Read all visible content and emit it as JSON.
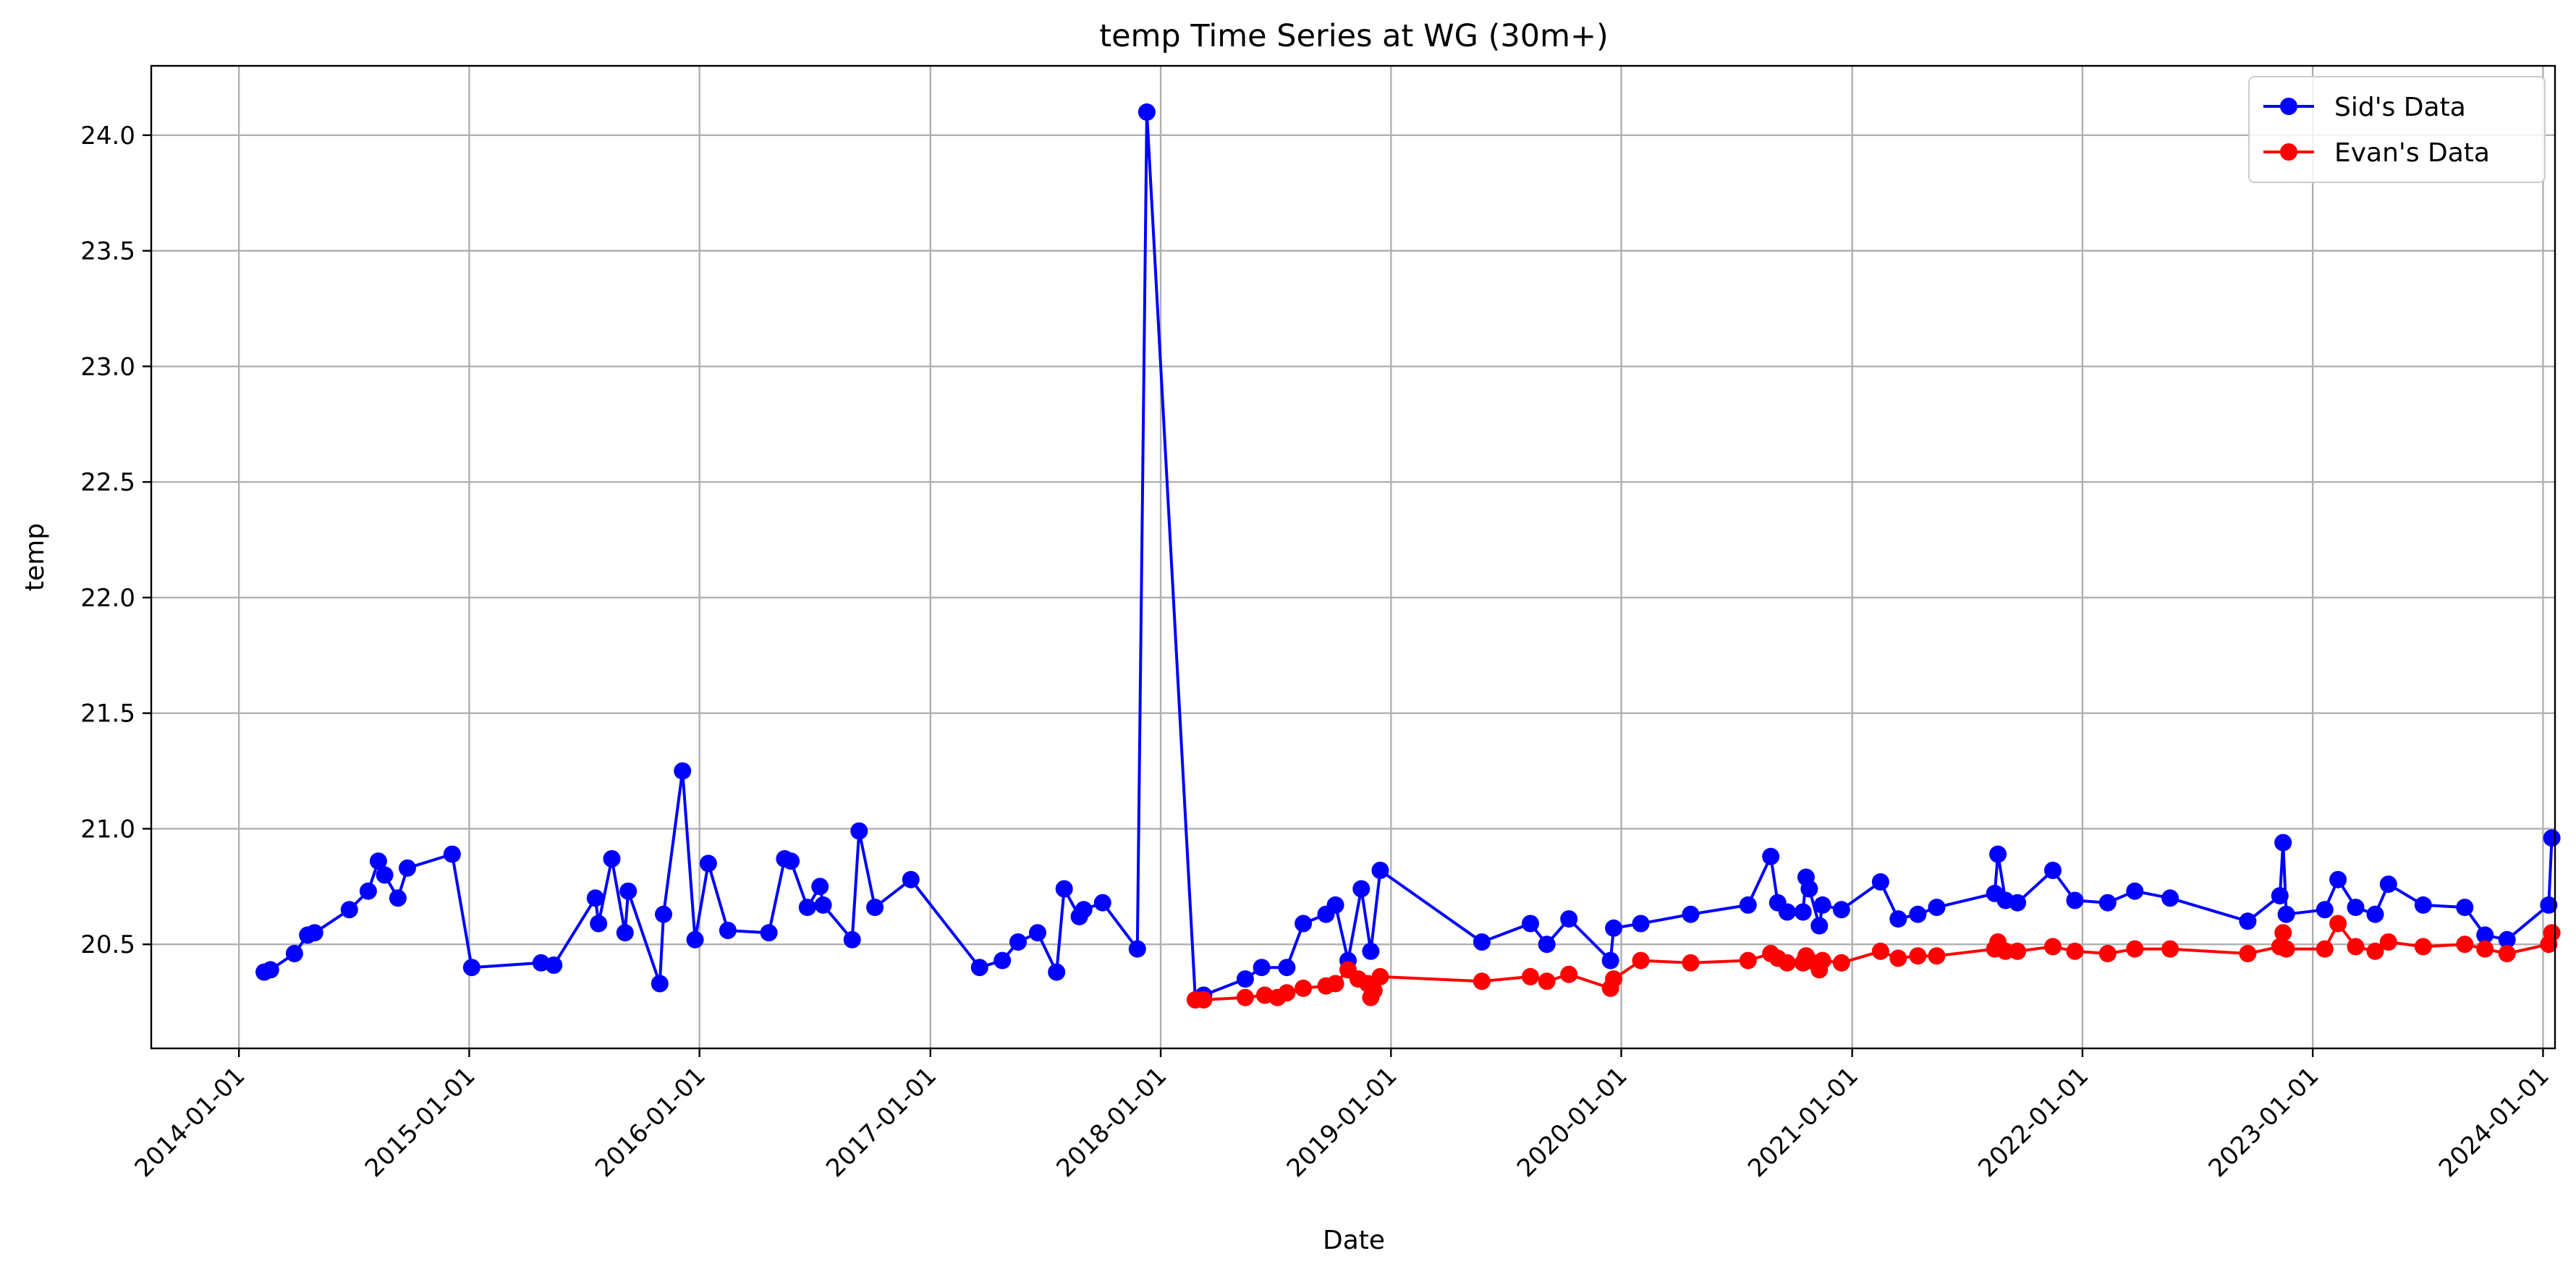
{
  "chart_data": {
    "type": "line",
    "title": "temp Time Series at WG (30m+)",
    "xlabel": "Date",
    "ylabel": "temp",
    "x_type": "date",
    "xlim": [
      "2013-08-15",
      "2024-01-20"
    ],
    "ylim": [
      20.05,
      24.3
    ],
    "x_ticks": [
      "2014-01-01",
      "2015-01-01",
      "2016-01-01",
      "2017-01-01",
      "2018-01-01",
      "2019-01-01",
      "2020-01-01",
      "2021-01-01",
      "2022-01-01",
      "2023-01-01",
      "2024-01-01"
    ],
    "y_ticks": [
      20.5,
      21.0,
      21.5,
      22.0,
      22.5,
      23.0,
      23.5,
      24.0
    ],
    "y_tick_labels": [
      "20.5",
      "21.0",
      "21.5",
      "22.0",
      "22.5",
      "23.0",
      "23.5",
      "24.0"
    ],
    "grid": true,
    "legend_position": "top-right",
    "series": [
      {
        "name": "Sid's Data",
        "color": "#0000ff",
        "marker": "circle",
        "points": [
          [
            "2014-02-10",
            20.38
          ],
          [
            "2014-02-20",
            20.39
          ],
          [
            "2014-03-30",
            20.46
          ],
          [
            "2014-04-20",
            20.54
          ],
          [
            "2014-05-01",
            20.55
          ],
          [
            "2014-06-25",
            20.65
          ],
          [
            "2014-07-25",
            20.73
          ],
          [
            "2014-08-10",
            20.86
          ],
          [
            "2014-08-20",
            20.8
          ],
          [
            "2014-09-10",
            20.7
          ],
          [
            "2014-09-25",
            20.83
          ],
          [
            "2014-12-05",
            20.89
          ],
          [
            "2015-01-05",
            20.4
          ],
          [
            "2015-04-25",
            20.42
          ],
          [
            "2015-05-15",
            20.41
          ],
          [
            "2015-07-20",
            20.7
          ],
          [
            "2015-07-25",
            20.59
          ],
          [
            "2015-08-15",
            20.87
          ],
          [
            "2015-09-05",
            20.55
          ],
          [
            "2015-09-10",
            20.73
          ],
          [
            "2015-10-30",
            20.33
          ],
          [
            "2015-11-05",
            20.63
          ],
          [
            "2015-12-05",
            21.25
          ],
          [
            "2015-12-25",
            20.52
          ],
          [
            "2016-01-15",
            20.85
          ],
          [
            "2016-02-15",
            20.56
          ],
          [
            "2016-04-20",
            20.55
          ],
          [
            "2016-05-15",
            20.87
          ],
          [
            "2016-05-25",
            20.86
          ],
          [
            "2016-06-20",
            20.66
          ],
          [
            "2016-07-10",
            20.75
          ],
          [
            "2016-07-15",
            20.67
          ],
          [
            "2016-08-30",
            20.52
          ],
          [
            "2016-09-10",
            20.99
          ],
          [
            "2016-10-05",
            20.66
          ],
          [
            "2016-12-01",
            20.78
          ],
          [
            "2017-03-20",
            20.4
          ],
          [
            "2017-04-25",
            20.43
          ],
          [
            "2017-05-20",
            20.51
          ],
          [
            "2017-06-20",
            20.55
          ],
          [
            "2017-07-20",
            20.38
          ],
          [
            "2017-08-01",
            20.74
          ],
          [
            "2017-08-25",
            20.62
          ],
          [
            "2017-09-01",
            20.65
          ],
          [
            "2017-10-01",
            20.68
          ],
          [
            "2017-11-25",
            20.48
          ],
          [
            "2017-12-10",
            24.1
          ],
          [
            "2018-02-25",
            20.26
          ],
          [
            "2018-03-10",
            20.28
          ],
          [
            "2018-05-15",
            20.35
          ],
          [
            "2018-06-10",
            20.4
          ],
          [
            "2018-07-20",
            20.4
          ],
          [
            "2018-08-15",
            20.59
          ],
          [
            "2018-09-20",
            20.63
          ],
          [
            "2018-10-05",
            20.67
          ],
          [
            "2018-10-25",
            20.43
          ],
          [
            "2018-11-15",
            20.74
          ],
          [
            "2018-11-30",
            20.47
          ],
          [
            "2018-12-15",
            20.82
          ],
          [
            "2019-05-25",
            20.51
          ],
          [
            "2019-08-10",
            20.59
          ],
          [
            "2019-09-05",
            20.5
          ],
          [
            "2019-10-10",
            20.61
          ],
          [
            "2019-12-15",
            20.43
          ],
          [
            "2019-12-20",
            20.57
          ],
          [
            "2020-02-01",
            20.59
          ],
          [
            "2020-04-20",
            20.63
          ],
          [
            "2020-07-20",
            20.67
          ],
          [
            "2020-08-25",
            20.88
          ],
          [
            "2020-09-05",
            20.68
          ],
          [
            "2020-09-20",
            20.64
          ],
          [
            "2020-10-15",
            20.64
          ],
          [
            "2020-10-20",
            20.79
          ],
          [
            "2020-10-25",
            20.74
          ],
          [
            "2020-11-10",
            20.58
          ],
          [
            "2020-11-15",
            20.67
          ],
          [
            "2020-12-15",
            20.65
          ],
          [
            "2021-02-15",
            20.77
          ],
          [
            "2021-03-15",
            20.61
          ],
          [
            "2021-04-15",
            20.63
          ],
          [
            "2021-05-15",
            20.66
          ],
          [
            "2021-08-15",
            20.72
          ],
          [
            "2021-08-20",
            20.89
          ],
          [
            "2021-09-01",
            20.69
          ],
          [
            "2021-09-20",
            20.68
          ],
          [
            "2021-11-15",
            20.82
          ],
          [
            "2021-12-20",
            20.69
          ],
          [
            "2022-02-10",
            20.68
          ],
          [
            "2022-03-25",
            20.73
          ],
          [
            "2022-05-20",
            20.7
          ],
          [
            "2022-09-20",
            20.6
          ],
          [
            "2022-11-10",
            20.71
          ],
          [
            "2022-11-15",
            20.94
          ],
          [
            "2022-11-20",
            20.63
          ],
          [
            "2023-01-20",
            20.65
          ],
          [
            "2023-02-10",
            20.78
          ],
          [
            "2023-03-10",
            20.66
          ],
          [
            "2023-04-10",
            20.63
          ],
          [
            "2023-05-01",
            20.76
          ],
          [
            "2023-06-25",
            20.67
          ],
          [
            "2023-08-30",
            20.66
          ],
          [
            "2023-10-01",
            20.54
          ],
          [
            "2023-11-05",
            20.52
          ],
          [
            "2024-01-10",
            20.67
          ],
          [
            "2024-01-15",
            20.96
          ]
        ]
      },
      {
        "name": "Evan's Data",
        "color": "#ff0000",
        "marker": "circle",
        "points": [
          [
            "2018-02-25",
            20.26
          ],
          [
            "2018-03-10",
            20.26
          ],
          [
            "2018-05-15",
            20.27
          ],
          [
            "2018-06-15",
            20.28
          ],
          [
            "2018-07-05",
            20.27
          ],
          [
            "2018-07-20",
            20.29
          ],
          [
            "2018-08-15",
            20.31
          ],
          [
            "2018-09-20",
            20.32
          ],
          [
            "2018-10-05",
            20.33
          ],
          [
            "2018-10-25",
            20.39
          ],
          [
            "2018-11-10",
            20.35
          ],
          [
            "2018-11-25",
            20.33
          ],
          [
            "2018-11-30",
            20.27
          ],
          [
            "2018-12-05",
            20.3
          ],
          [
            "2018-12-15",
            20.36
          ],
          [
            "2019-05-25",
            20.34
          ],
          [
            "2019-08-10",
            20.36
          ],
          [
            "2019-09-05",
            20.34
          ],
          [
            "2019-10-10",
            20.37
          ],
          [
            "2019-12-15",
            20.31
          ],
          [
            "2019-12-20",
            20.35
          ],
          [
            "2020-02-01",
            20.43
          ],
          [
            "2020-04-20",
            20.42
          ],
          [
            "2020-07-20",
            20.43
          ],
          [
            "2020-08-25",
            20.46
          ],
          [
            "2020-09-05",
            20.44
          ],
          [
            "2020-09-20",
            20.42
          ],
          [
            "2020-10-15",
            20.42
          ],
          [
            "2020-10-20",
            20.45
          ],
          [
            "2020-10-25",
            20.43
          ],
          [
            "2020-11-10",
            20.39
          ],
          [
            "2020-11-15",
            20.43
          ],
          [
            "2020-12-15",
            20.42
          ],
          [
            "2021-02-15",
            20.47
          ],
          [
            "2021-03-15",
            20.44
          ],
          [
            "2021-04-15",
            20.45
          ],
          [
            "2021-05-15",
            20.45
          ],
          [
            "2021-08-15",
            20.48
          ],
          [
            "2021-08-20",
            20.51
          ],
          [
            "2021-09-01",
            20.47
          ],
          [
            "2021-09-20",
            20.47
          ],
          [
            "2021-11-15",
            20.49
          ],
          [
            "2021-12-20",
            20.47
          ],
          [
            "2022-02-10",
            20.46
          ],
          [
            "2022-03-25",
            20.48
          ],
          [
            "2022-05-20",
            20.48
          ],
          [
            "2022-09-20",
            20.46
          ],
          [
            "2022-11-10",
            20.49
          ],
          [
            "2022-11-15",
            20.55
          ],
          [
            "2022-11-20",
            20.48
          ],
          [
            "2023-01-20",
            20.48
          ],
          [
            "2023-02-10",
            20.59
          ],
          [
            "2023-03-10",
            20.49
          ],
          [
            "2023-04-10",
            20.47
          ],
          [
            "2023-05-01",
            20.51
          ],
          [
            "2023-06-25",
            20.49
          ],
          [
            "2023-08-30",
            20.5
          ],
          [
            "2023-10-01",
            20.48
          ],
          [
            "2023-11-05",
            20.46
          ],
          [
            "2024-01-10",
            20.5
          ],
          [
            "2024-01-15",
            20.55
          ]
        ]
      }
    ]
  }
}
